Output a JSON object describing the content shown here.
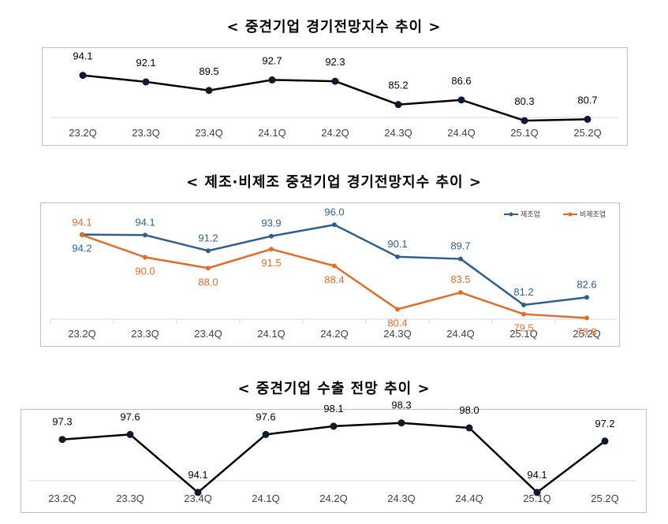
{
  "chart_data": [
    {
      "type": "line",
      "title": "< 중견기업 경기전망지수 추이 >",
      "categories": [
        "23.2Q",
        "23.3Q",
        "23.4Q",
        "24.1Q",
        "24.2Q",
        "24.3Q",
        "24.4Q",
        "25.1Q",
        "25.2Q"
      ],
      "series": [
        {
          "name": "",
          "values": [
            94.1,
            92.1,
            89.5,
            92.7,
            92.3,
            85.2,
            86.6,
            80.3,
            80.7
          ],
          "color": "#000000"
        }
      ],
      "ylim": [
        76,
        100
      ],
      "grid": false,
      "legend": "none"
    },
    {
      "type": "line",
      "title": "< 제조·비제조 중견기업 경기전망지수 추이 >",
      "categories": [
        "23.2Q",
        "23.3Q",
        "23.4Q",
        "24.1Q",
        "24.2Q",
        "24.3Q",
        "24.4Q",
        "25.1Q",
        "25.2Q"
      ],
      "series": [
        {
          "name": "제조업",
          "values": [
            94.2,
            94.1,
            91.2,
            93.9,
            96.0,
            90.1,
            89.7,
            81.2,
            82.6
          ],
          "color": "#2e5f8f"
        },
        {
          "name": "비제조업",
          "values": [
            94.1,
            90.0,
            88.0,
            91.5,
            88.4,
            80.4,
            83.5,
            79.5,
            78.8
          ],
          "color": "#e46c2a"
        }
      ],
      "ylim": [
        70,
        102
      ],
      "grid": false,
      "legend": "top-right"
    },
    {
      "type": "line",
      "title": "< 중견기업 수출 전망 추이 >",
      "categories": [
        "23.2Q",
        "23.3Q",
        "23.4Q",
        "24.1Q",
        "24.2Q",
        "24.3Q",
        "24.4Q",
        "25.1Q",
        "25.2Q"
      ],
      "series": [
        {
          "name": "",
          "values": [
            97.3,
            97.6,
            94.1,
            97.6,
            98.1,
            98.3,
            98.0,
            94.1,
            97.2
          ],
          "color": "#000000"
        }
      ],
      "ylim": [
        91,
        101
      ],
      "grid": false,
      "legend": "none"
    }
  ]
}
